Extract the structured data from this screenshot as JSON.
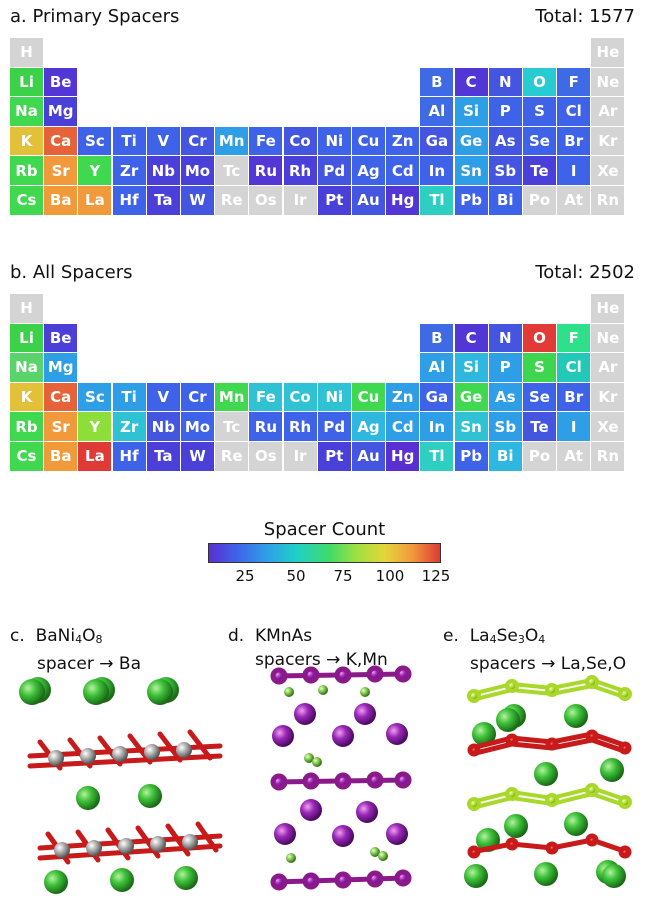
{
  "panel_a": {
    "label": "a. Primary Spacers",
    "total": "Total: 1577"
  },
  "panel_b": {
    "label": "b. All Spacers",
    "total": "Total: 2502"
  },
  "colorbar": {
    "title": "Spacer Count",
    "ticks": [
      "25",
      "50",
      "75",
      "100",
      "125"
    ],
    "colors": [
      "#5a2fd2",
      "#3f63e8",
      "#2e9fe6",
      "#1fd0c8",
      "#3fdb6a",
      "#9fe040",
      "#e4d63a",
      "#f09a3b",
      "#e03a36"
    ]
  },
  "elements": [
    {
      "sym": "H",
      "r": 1,
      "c": 1,
      "a": "#d4d4d4",
      "b": "#d4d4d4"
    },
    {
      "sym": "He",
      "r": 1,
      "c": 18,
      "a": "#d4d4d4",
      "b": "#d4d4d4"
    },
    {
      "sym": "Li",
      "r": 2,
      "c": 1,
      "a": "#3bd24a",
      "b": "#3bd24a"
    },
    {
      "sym": "Be",
      "r": 2,
      "c": 2,
      "a": "#5236d6",
      "b": "#4b3fd8"
    },
    {
      "sym": "B",
      "r": 2,
      "c": 13,
      "a": "#3e6ae6",
      "b": "#3e6ae6"
    },
    {
      "sym": "C",
      "r": 2,
      "c": 14,
      "a": "#5236d6",
      "b": "#5236d6"
    },
    {
      "sym": "N",
      "r": 2,
      "c": 15,
      "a": "#4455e0",
      "b": "#4455e0"
    },
    {
      "sym": "O",
      "r": 2,
      "c": 16,
      "a": "#29cbd2",
      "b": "#e23a36"
    },
    {
      "sym": "F",
      "r": 2,
      "c": 17,
      "a": "#3e6ae6",
      "b": "#2ee08a"
    },
    {
      "sym": "Ne",
      "r": 2,
      "c": 18,
      "a": "#d4d4d4",
      "b": "#d4d4d4"
    },
    {
      "sym": "Na",
      "r": 3,
      "c": 1,
      "a": "#3fd84e",
      "b": "#5ad46a"
    },
    {
      "sym": "Mg",
      "r": 3,
      "c": 2,
      "a": "#4a3fd8",
      "b": "#2e9fe6"
    },
    {
      "sym": "Al",
      "r": 3,
      "c": 13,
      "a": "#3e6ae6",
      "b": "#2e9fe6"
    },
    {
      "sym": "Si",
      "r": 3,
      "c": 14,
      "a": "#2e9fe6",
      "b": "#2eb8e0"
    },
    {
      "sym": "P",
      "r": 3,
      "c": 15,
      "a": "#3f63e8",
      "b": "#2e9fe6"
    },
    {
      "sym": "S",
      "r": 3,
      "c": 16,
      "a": "#3f63e8",
      "b": "#3ed64e"
    },
    {
      "sym": "Cl",
      "r": 3,
      "c": 17,
      "a": "#3f63e8",
      "b": "#22c8b8"
    },
    {
      "sym": "Ar",
      "r": 3,
      "c": 18,
      "a": "#d4d4d4",
      "b": "#d4d4d4"
    },
    {
      "sym": "K",
      "r": 4,
      "c": 1,
      "a": "#e2c038",
      "b": "#e2c038"
    },
    {
      "sym": "Ca",
      "r": 4,
      "c": 2,
      "a": "#e6633a",
      "b": "#e6633a"
    },
    {
      "sym": "Sc",
      "r": 4,
      "c": 3,
      "a": "#3f63e8",
      "b": "#2e9fe6"
    },
    {
      "sym": "Ti",
      "r": 4,
      "c": 4,
      "a": "#3f63e8",
      "b": "#2e9fe6"
    },
    {
      "sym": "V",
      "r": 4,
      "c": 5,
      "a": "#3f63e8",
      "b": "#3f63e8"
    },
    {
      "sym": "Cr",
      "r": 4,
      "c": 6,
      "a": "#4455e0",
      "b": "#3f63e8"
    },
    {
      "sym": "Mn",
      "r": 4,
      "c": 7,
      "a": "#2e9fe6",
      "b": "#3fd84e"
    },
    {
      "sym": "Fe",
      "r": 4,
      "c": 8,
      "a": "#3f63e8",
      "b": "#2ec2d4"
    },
    {
      "sym": "Co",
      "r": 4,
      "c": 9,
      "a": "#4455e0",
      "b": "#2ec2d4"
    },
    {
      "sym": "Ni",
      "r": 4,
      "c": 10,
      "a": "#3f63e8",
      "b": "#2ec2d4"
    },
    {
      "sym": "Cu",
      "r": 4,
      "c": 11,
      "a": "#3f63e8",
      "b": "#3fd84e"
    },
    {
      "sym": "Zn",
      "r": 4,
      "c": 12,
      "a": "#3f63e8",
      "b": "#2e9fe6"
    },
    {
      "sym": "Ga",
      "r": 4,
      "c": 13,
      "a": "#4455e0",
      "b": "#3f63e8"
    },
    {
      "sym": "Ge",
      "r": 4,
      "c": 14,
      "a": "#2e9fe6",
      "b": "#3fd84e"
    },
    {
      "sym": "As",
      "r": 4,
      "c": 15,
      "a": "#4455e0",
      "b": "#2e9fe6"
    },
    {
      "sym": "Se",
      "r": 4,
      "c": 16,
      "a": "#3f63e8",
      "b": "#3f63e8"
    },
    {
      "sym": "Br",
      "r": 4,
      "c": 17,
      "a": "#3f63e8",
      "b": "#3f63e8"
    },
    {
      "sym": "Kr",
      "r": 4,
      "c": 18,
      "a": "#d4d4d4",
      "b": "#d4d4d4"
    },
    {
      "sym": "Rb",
      "r": 5,
      "c": 1,
      "a": "#3fd84e",
      "b": "#3fd84e"
    },
    {
      "sym": "Sr",
      "r": 5,
      "c": 2,
      "a": "#f09a3b",
      "b": "#f09a3b"
    },
    {
      "sym": "Y",
      "r": 5,
      "c": 3,
      "a": "#3fd84e",
      "b": "#8ede3a"
    },
    {
      "sym": "Zr",
      "r": 5,
      "c": 4,
      "a": "#3f63e8",
      "b": "#2ec2d4"
    },
    {
      "sym": "Nb",
      "r": 5,
      "c": 5,
      "a": "#4a3fd8",
      "b": "#4455e0"
    },
    {
      "sym": "Mo",
      "r": 5,
      "c": 6,
      "a": "#4a3fd8",
      "b": "#3f63e8"
    },
    {
      "sym": "Tc",
      "r": 5,
      "c": 7,
      "a": "#d4d4d4",
      "b": "#d4d4d4"
    },
    {
      "sym": "Ru",
      "r": 5,
      "c": 8,
      "a": "#5236d6",
      "b": "#3f63e8"
    },
    {
      "sym": "Rh",
      "r": 5,
      "c": 9,
      "a": "#4a3fd8",
      "b": "#3f63e8"
    },
    {
      "sym": "Pd",
      "r": 5,
      "c": 10,
      "a": "#4455e0",
      "b": "#3f63e8"
    },
    {
      "sym": "Ag",
      "r": 5,
      "c": 11,
      "a": "#3f63e8",
      "b": "#2eb8e0"
    },
    {
      "sym": "Cd",
      "r": 5,
      "c": 12,
      "a": "#3f63e8",
      "b": "#2e9fe6"
    },
    {
      "sym": "In",
      "r": 5,
      "c": 13,
      "a": "#3f63e8",
      "b": "#2e9fe6"
    },
    {
      "sym": "Sn",
      "r": 5,
      "c": 14,
      "a": "#2e9fe6",
      "b": "#2ec2d4"
    },
    {
      "sym": "Sb",
      "r": 5,
      "c": 15,
      "a": "#4455e0",
      "b": "#2e9fe6"
    },
    {
      "sym": "Te",
      "r": 5,
      "c": 16,
      "a": "#4a3fd8",
      "b": "#4455e0"
    },
    {
      "sym": "I",
      "r": 5,
      "c": 17,
      "a": "#3f63e8",
      "b": "#2e9fe6"
    },
    {
      "sym": "Xe",
      "r": 5,
      "c": 18,
      "a": "#d4d4d4",
      "b": "#d4d4d4"
    },
    {
      "sym": "Cs",
      "r": 6,
      "c": 1,
      "a": "#3fd84e",
      "b": "#3fd84e"
    },
    {
      "sym": "Ba",
      "r": 6,
      "c": 2,
      "a": "#f09a3b",
      "b": "#f09a3b"
    },
    {
      "sym": "La",
      "r": 6,
      "c": 3,
      "a": "#f09a3b",
      "b": "#e03a36"
    },
    {
      "sym": "Hf",
      "r": 6,
      "c": 4,
      "a": "#3f63e8",
      "b": "#3f63e8"
    },
    {
      "sym": "Ta",
      "r": 6,
      "c": 5,
      "a": "#4a3fd8",
      "b": "#4a3fd8"
    },
    {
      "sym": "W",
      "r": 6,
      "c": 6,
      "a": "#4455e0",
      "b": "#4a3fd8"
    },
    {
      "sym": "Re",
      "r": 6,
      "c": 7,
      "a": "#d4d4d4",
      "b": "#d4d4d4"
    },
    {
      "sym": "Os",
      "r": 6,
      "c": 8,
      "a": "#d4d4d4",
      "b": "#d4d4d4"
    },
    {
      "sym": "Ir",
      "r": 6,
      "c": 9,
      "a": "#d4d4d4",
      "b": "#d4d4d4"
    },
    {
      "sym": "Pt",
      "r": 6,
      "c": 10,
      "a": "#4a3fd8",
      "b": "#4a3fd8"
    },
    {
      "sym": "Au",
      "r": 6,
      "c": 11,
      "a": "#4455e0",
      "b": "#4455e0"
    },
    {
      "sym": "Hg",
      "r": 6,
      "c": 12,
      "a": "#5236d6",
      "b": "#5a2fd2"
    },
    {
      "sym": "Tl",
      "r": 6,
      "c": 13,
      "a": "#2ecfc2",
      "b": "#2ecfc2"
    },
    {
      "sym": "Pb",
      "r": 6,
      "c": 14,
      "a": "#3f63e8",
      "b": "#3f63e8"
    },
    {
      "sym": "Bi",
      "r": 6,
      "c": 15,
      "a": "#3f63e8",
      "b": "#2eb8e0"
    },
    {
      "sym": "Po",
      "r": 6,
      "c": 16,
      "a": "#d4d4d4",
      "b": "#d4d4d4"
    },
    {
      "sym": "At",
      "r": 6,
      "c": 17,
      "a": "#d4d4d4",
      "b": "#d4d4d4"
    },
    {
      "sym": "Rn",
      "r": 6,
      "c": 18,
      "a": "#d4d4d4",
      "b": "#d4d4d4"
    }
  ],
  "panel_c": {
    "letter": "c.",
    "formula_parts": [
      "BaNi",
      "4",
      "O",
      "8"
    ],
    "spacer_line": "spacer → Ba"
  },
  "panel_d": {
    "letter": "d.",
    "formula_parts": [
      "KMnAs"
    ],
    "spacer_line": "spacers → K,Mn"
  },
  "panel_e": {
    "letter": "e.",
    "formula_parts": [
      "La",
      "4",
      "Se",
      "3",
      "O",
      "4"
    ],
    "spacer_line": "spacers → La,Se,O"
  }
}
